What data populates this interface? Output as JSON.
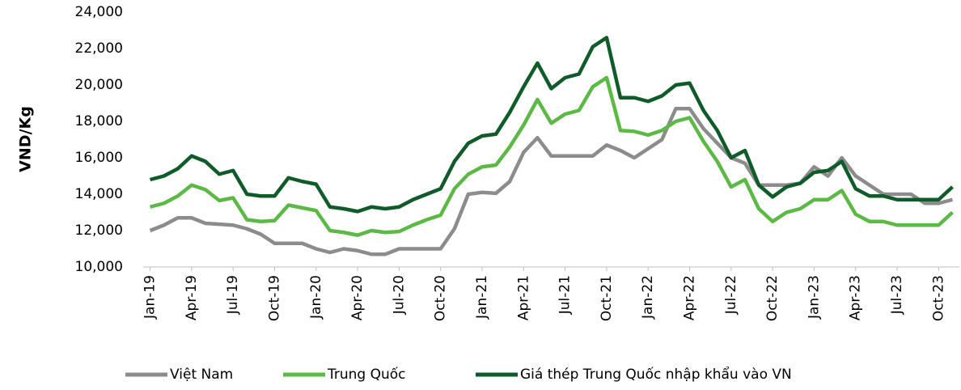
{
  "chart_data": {
    "type": "line",
    "y_label": "VND/Kg",
    "categories": [
      "Jan-19",
      null,
      null,
      "Apr-19",
      null,
      null,
      "Jul-19",
      null,
      null,
      "Oct-19",
      null,
      null,
      "Jan-20",
      null,
      null,
      "Apr-20",
      null,
      null,
      "Jul-20",
      null,
      null,
      "Oct-20",
      null,
      null,
      "Jan-21",
      null,
      null,
      "Apr-21",
      null,
      null,
      "Jul-21",
      null,
      null,
      "Oct-21",
      null,
      null,
      "Jan-22",
      null,
      null,
      "Apr-22",
      null,
      null,
      "Jul-22",
      null,
      null,
      "Oct-22",
      null,
      null,
      "Jan-23",
      null,
      null,
      "Apr-23",
      null,
      null,
      "Jul-23",
      null,
      null,
      "Oct-23",
      null
    ],
    "series": [
      {
        "name": "Việt Nam",
        "color": "#8c8c8c",
        "values": [
          12000,
          12300,
          12700,
          12700,
          12400,
          12350,
          12300,
          12100,
          11800,
          11300,
          11300,
          11300,
          11000,
          10800,
          11000,
          10900,
          10700,
          10700,
          11000,
          11000,
          11000,
          11000,
          12100,
          14000,
          14100,
          14050,
          14700,
          16300,
          17100,
          16100,
          16100,
          16100,
          16100,
          16700,
          16400,
          16000,
          16500,
          17000,
          18700,
          18700,
          17600,
          16800,
          16000,
          15700,
          14500,
          14500,
          14500,
          14600,
          15500,
          15000,
          16000,
          15000,
          14500,
          14000,
          14000,
          14000,
          13500,
          13500,
          13700
        ]
      },
      {
        "name": "Trung Quốc",
        "color": "#5cb946",
        "values": [
          13300,
          13500,
          13900,
          14500,
          14250,
          13650,
          13800,
          12600,
          12500,
          12550,
          13400,
          13250,
          13100,
          12000,
          11900,
          11750,
          12000,
          11900,
          11950,
          12300,
          12600,
          12850,
          14300,
          15100,
          15500,
          15600,
          16600,
          17800,
          19200,
          17900,
          18400,
          18600,
          19900,
          20400,
          17500,
          17450,
          17250,
          17500,
          18000,
          18200,
          16900,
          15800,
          14400,
          14800,
          13200,
          12500,
          13000,
          13200,
          13700,
          13700,
          14200,
          12900,
          12500,
          12500,
          12300,
          12300,
          12300,
          12300,
          13000
        ]
      },
      {
        "name": "Giá thép Trung Quốc nhập khẩu vào VN",
        "color": "#0f5c2a",
        "values": [
          14800,
          15000,
          15400,
          16100,
          15800,
          15100,
          15300,
          14000,
          13900,
          13900,
          14900,
          14700,
          14550,
          13300,
          13200,
          13050,
          13300,
          13200,
          13300,
          13700,
          14000,
          14300,
          15800,
          16800,
          17200,
          17300,
          18500,
          19900,
          21200,
          19800,
          20400,
          20600,
          22100,
          22600,
          19300,
          19300,
          19100,
          19400,
          20000,
          20100,
          18600,
          17500,
          16000,
          16400,
          14500,
          13850,
          14400,
          14600,
          15200,
          15300,
          15800,
          14300,
          13900,
          13900,
          13700,
          13700,
          13700,
          13700,
          14400
        ]
      }
    ],
    "ylim": [
      10000,
      24000
    ],
    "yticks": [
      {
        "value": 10000,
        "label": "10,000"
      },
      {
        "value": 12000,
        "label": "12,000"
      },
      {
        "value": 14000,
        "label": "14,000"
      },
      {
        "value": 16000,
        "label": "16,000"
      },
      {
        "value": 18000,
        "label": "18,000"
      },
      {
        "value": 20000,
        "label": "20,000"
      },
      {
        "value": 22000,
        "label": "22,000"
      },
      {
        "value": 24000,
        "label": "24,000"
      }
    ],
    "grid": false,
    "legend": "bottom"
  }
}
